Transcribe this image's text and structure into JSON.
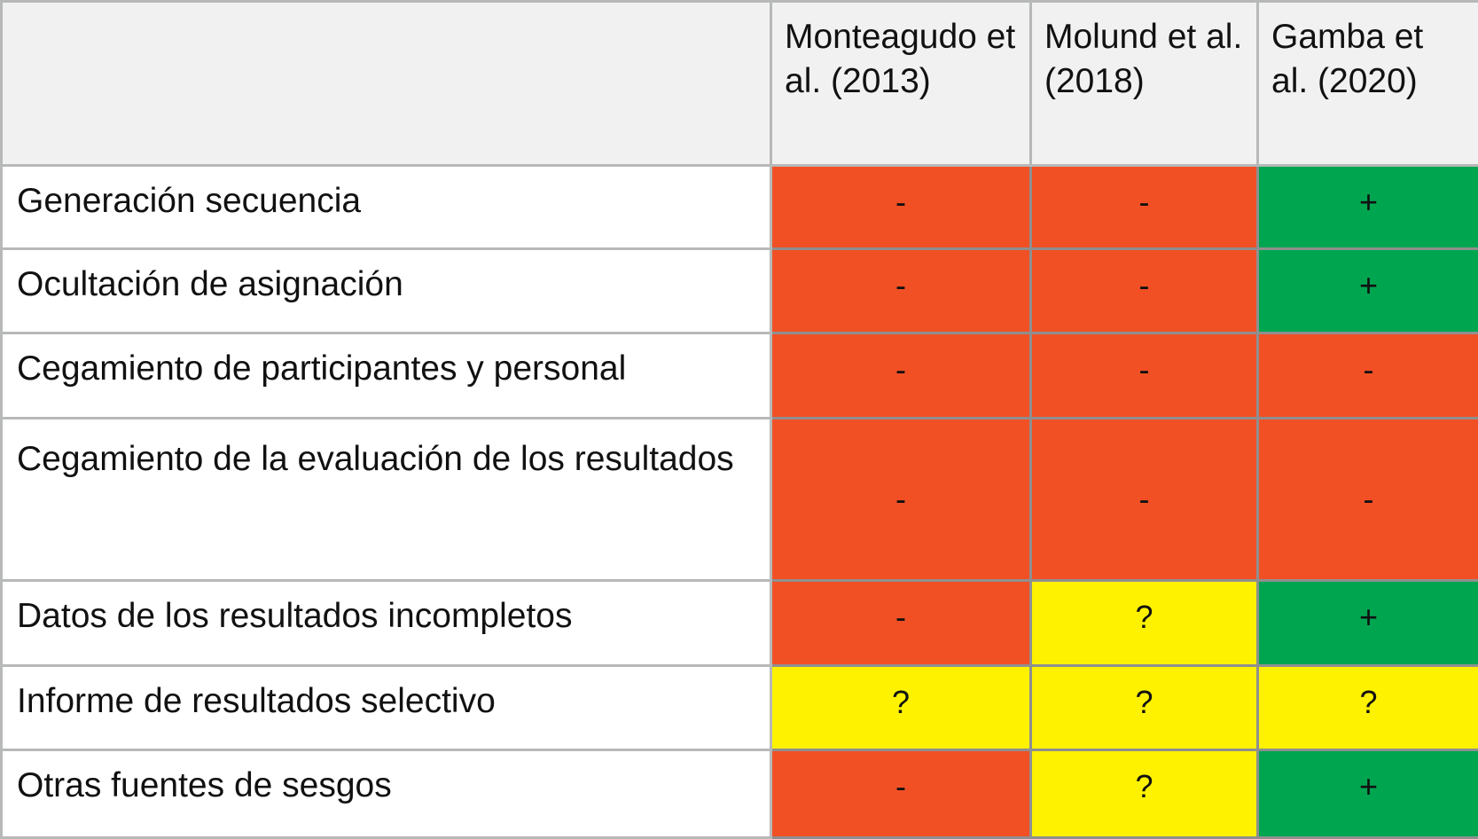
{
  "chart_data": {
    "type": "table",
    "columns": [
      "Monteagudo et al. (2013)",
      "Molund et al. (2018)",
      "Gamba et al. (2020)"
    ],
    "rows": [
      {
        "label": "Generación secuencia",
        "values": [
          "-",
          "-",
          "+"
        ]
      },
      {
        "label": "Ocultación de asignación",
        "values": [
          "-",
          "-",
          "+"
        ]
      },
      {
        "label": "Cegamiento de participantes y personal",
        "values": [
          "-",
          "-",
          "-"
        ]
      },
      {
        "label": "Cegamiento de la evaluación de los resultados",
        "values": [
          "-",
          "-",
          "-"
        ]
      },
      {
        "label": "Datos de los resultados incompletos",
        "values": [
          "-",
          "?",
          "+"
        ]
      },
      {
        "label": "Informe de resultados selectivo",
        "values": [
          "?",
          "?",
          "?"
        ]
      },
      {
        "label": "Otras fuentes de sesgos",
        "values": [
          "-",
          "?",
          "+"
        ]
      }
    ],
    "colors": {
      "-": "#f15025",
      "?": "#fff200",
      "+": "#00a550"
    }
  }
}
